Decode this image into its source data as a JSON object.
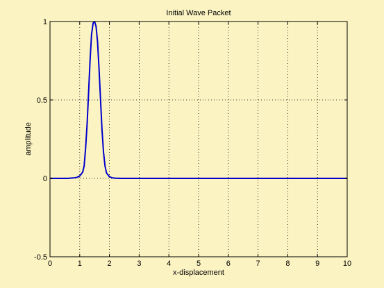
{
  "chart_data": {
    "type": "line",
    "title": "Initial Wave Packet",
    "xlabel": "x-displacement",
    "ylabel": "amplitude",
    "xlim": [
      0,
      10
    ],
    "ylim": [
      -0.5,
      1
    ],
    "xticks": [
      0,
      1,
      2,
      3,
      4,
      5,
      6,
      7,
      8,
      9,
      10
    ],
    "xtick_labels": [
      "0",
      "1",
      "2",
      "3",
      "4",
      "5",
      "6",
      "7",
      "8",
      "9",
      "10"
    ],
    "yticks": [
      -0.5,
      0,
      0.5,
      1
    ],
    "ytick_labels": [
      "-0.5",
      "0",
      "0.5",
      "1"
    ],
    "grid": true,
    "grid_style": "dotted",
    "series": [
      {
        "color": "#0000cc",
        "x": [
          0,
          0.3,
          0.6,
          0.8,
          0.9,
          1.0,
          1.1,
          1.15,
          1.2,
          1.25,
          1.3,
          1.35,
          1.4,
          1.45,
          1.5,
          1.55,
          1.6,
          1.65,
          1.7,
          1.75,
          1.8,
          1.85,
          1.9,
          2.0,
          2.1,
          2.2,
          2.4,
          2.8,
          3.5,
          5,
          7,
          9,
          10
        ],
        "y": [
          0,
          0,
          0,
          0.003,
          0.006,
          0.015,
          0.04,
          0.08,
          0.2,
          0.35,
          0.55,
          0.76,
          0.92,
          0.99,
          1.0,
          0.97,
          0.87,
          0.7,
          0.5,
          0.31,
          0.17,
          0.08,
          0.035,
          0.01,
          0.003,
          0.001,
          0,
          0,
          0,
          0,
          0,
          0,
          0
        ]
      }
    ]
  }
}
